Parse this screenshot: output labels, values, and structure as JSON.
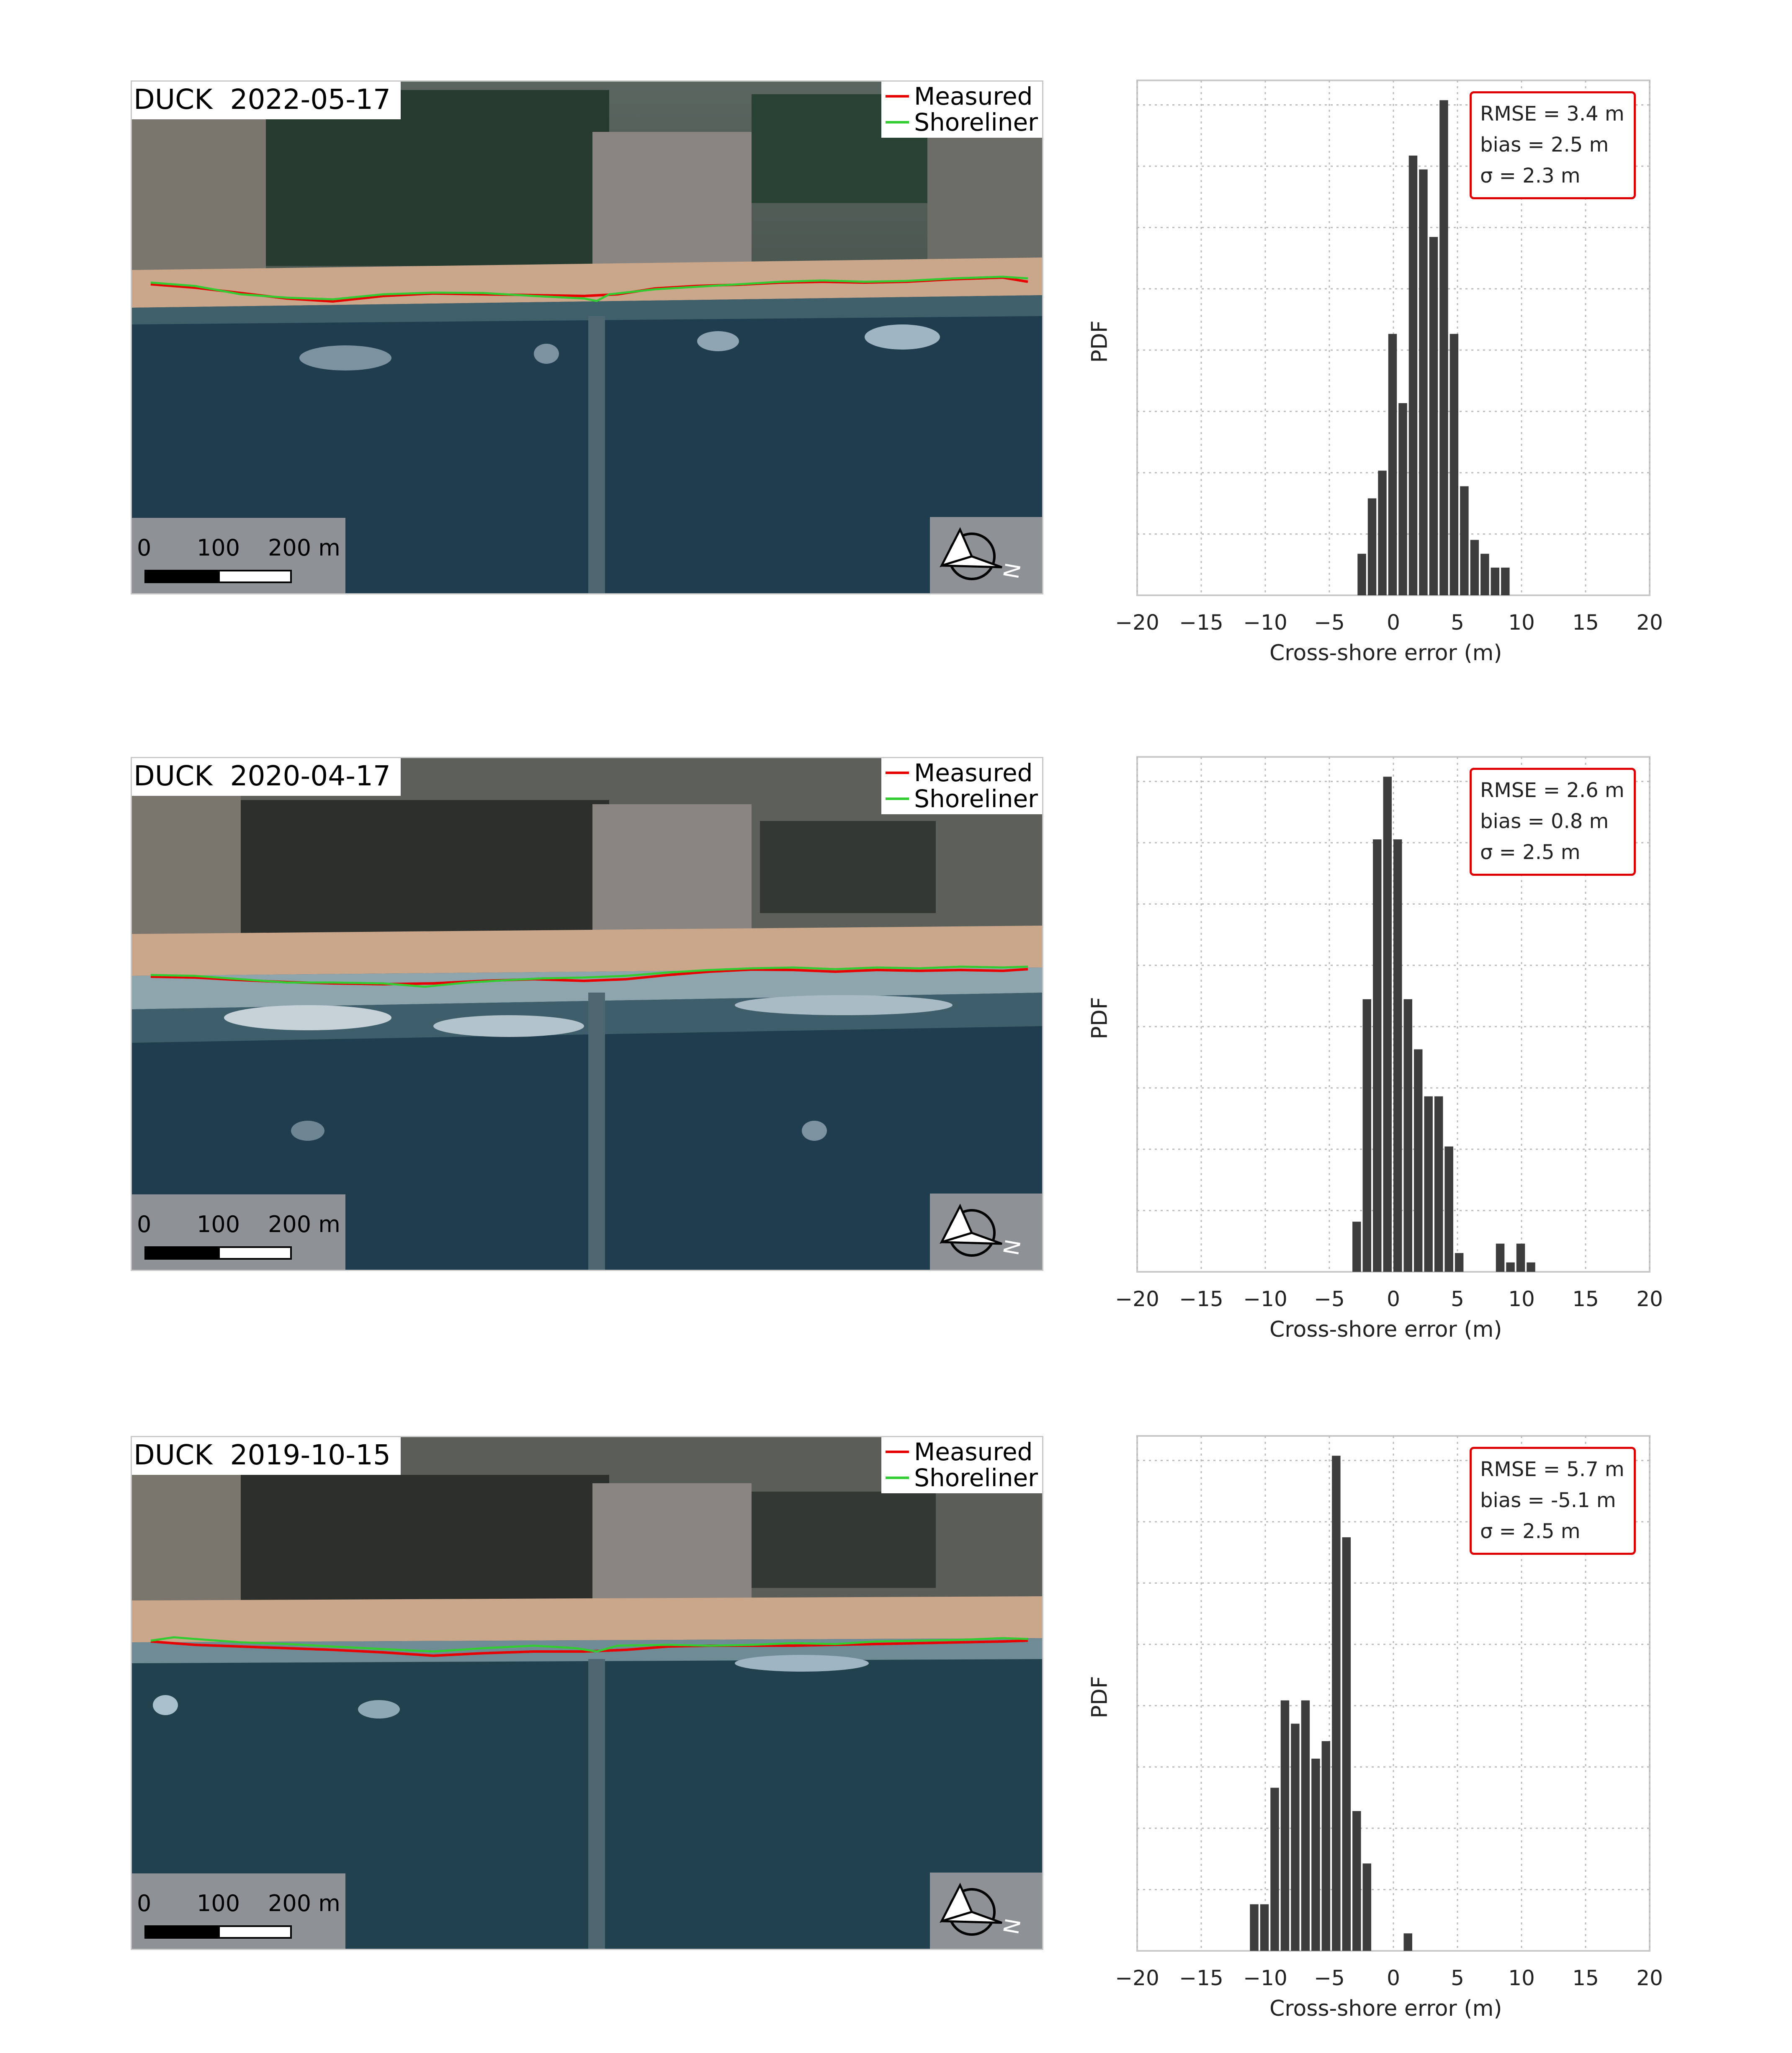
{
  "colors": {
    "measured": "#e80000",
    "shoreliner": "#33cc33",
    "bar": "#3d3d3d",
    "stats_border": "#dd0000"
  },
  "legend": {
    "measured_label": "Measured",
    "shoreliner_label": "Shoreliner"
  },
  "scalebar": {
    "tick0": "0",
    "tick1": "100",
    "tick2": "200 m"
  },
  "icons": {
    "north_arrow": "north-arrow-icon"
  },
  "panels": [
    {
      "map_title": "DUCK  2022-05-17"
    },
    {
      "map_title": "DUCK  2020-04-17"
    },
    {
      "map_title": "DUCK  2019-10-15"
    }
  ],
  "chart_data": [
    {
      "type": "bar",
      "ylabel": "PDF",
      "xlabel": "Cross-shore error (m)",
      "xlim": [
        -20,
        20
      ],
      "xticks": [
        "−20",
        "−15",
        "−10",
        "−5",
        "0",
        "5",
        "10",
        "15",
        "20"
      ],
      "bin_width": 0.8,
      "x": [
        -2.8,
        -2.0,
        -1.2,
        -0.4,
        0.4,
        1.2,
        2.0,
        2.8,
        3.6,
        4.4,
        5.2,
        6.0,
        6.8,
        7.6,
        8.4,
        9.2
      ],
      "values": [
        0.024,
        0.056,
        0.072,
        0.151,
        0.111,
        0.254,
        0.246,
        0.207,
        0.286,
        0.151,
        0.063,
        0.032,
        0.024,
        0.016,
        0.016,
        0.0
      ],
      "stats": {
        "line1": "RMSE = 3.4 m",
        "line2": "bias = 2.5 m",
        "line3": "σ = 2.3 m"
      }
    },
    {
      "type": "bar",
      "ylabel": "PDF",
      "xlabel": "Cross-shore error (m)",
      "xlim": [
        -20,
        20
      ],
      "xticks": [
        "−20",
        "−15",
        "−10",
        "−5",
        "0",
        "5",
        "10",
        "15",
        "20"
      ],
      "bin_width": 0.8,
      "x": [
        -3.2,
        -2.4,
        -1.6,
        -0.8,
        0.0,
        0.8,
        1.6,
        2.4,
        3.2,
        4.0,
        4.8,
        5.6,
        6.4,
        7.2,
        8.0,
        8.8,
        9.6,
        10.4
      ],
      "values": [
        0.016,
        0.087,
        0.138,
        0.158,
        0.138,
        0.087,
        0.071,
        0.056,
        0.056,
        0.04,
        0.006,
        0.0,
        0.0,
        0.0,
        0.009,
        0.003,
        0.009,
        0.003
      ],
      "stats": {
        "line1": "RMSE = 2.6 m",
        "line2": "bias = 0.8 m",
        "line3": "σ = 2.5 m"
      }
    },
    {
      "type": "bar",
      "ylabel": "PDF",
      "xlabel": "Cross-shore error (m)",
      "xlim": [
        -20,
        20
      ],
      "xticks": [
        "−20",
        "−15",
        "−10",
        "−5",
        "0",
        "5",
        "10",
        "15",
        "20"
      ],
      "bin_width": 0.8,
      "x": [
        -11.2,
        -10.4,
        -9.6,
        -8.8,
        -8.0,
        -7.2,
        -6.4,
        -5.6,
        -4.8,
        -4.0,
        -3.2,
        -2.4,
        -1.6,
        -0.8,
        0.0,
        0.8
      ],
      "values": [
        0.008,
        0.008,
        0.028,
        0.043,
        0.039,
        0.043,
        0.033,
        0.036,
        0.085,
        0.071,
        0.024,
        0.015,
        0.0,
        0.0,
        0.0,
        0.003
      ],
      "stats": {
        "line1": "RMSE = 5.7 m",
        "line2": "bias = -5.1 m",
        "line3": "σ = 2.5 m"
      }
    }
  ]
}
